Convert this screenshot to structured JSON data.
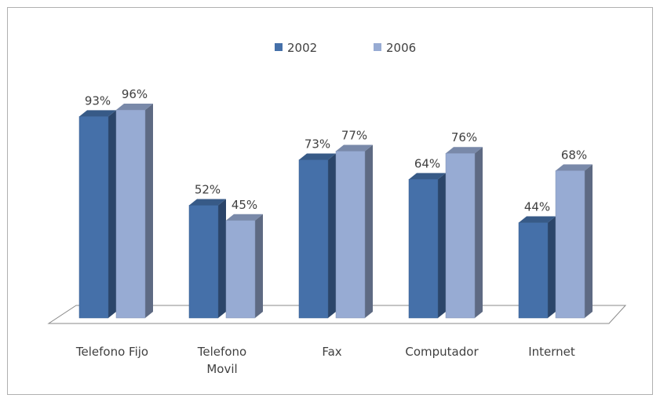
{
  "chart_data": {
    "type": "bar3d",
    "categories": [
      "Telefono Fijo",
      "Telefono\nMovil",
      "Fax",
      "Computador",
      "Internet"
    ],
    "series": [
      {
        "name": "2002",
        "color": "#4570a9",
        "values": [
          93,
          52,
          73,
          64,
          44
        ],
        "value_labels": [
          "93%",
          "52%",
          "73%",
          "64%",
          "44%"
        ]
      },
      {
        "name": "2006",
        "color": "#97abd3",
        "values": [
          96,
          45,
          77,
          76,
          68
        ],
        "value_labels": [
          "96%",
          "45%",
          "77%",
          "76%",
          "68%"
        ]
      }
    ],
    "legend": "top"
  }
}
